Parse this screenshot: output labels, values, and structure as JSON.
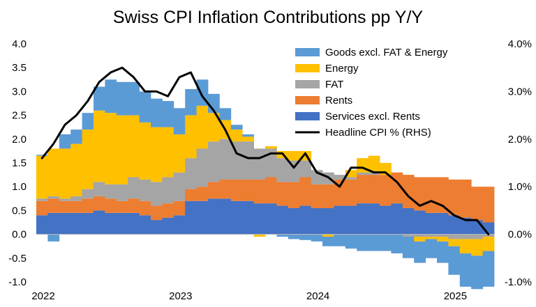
{
  "chart_data": {
    "type": "stacked-bar-with-line",
    "title": "Swiss CPI Inflation Contributions pp Y/Y",
    "xlabel": "",
    "ylabel_left": "",
    "ylabel_right": "",
    "ylim_left": [
      -1.0,
      4.0
    ],
    "ylim_right": [
      -1.0,
      4.0
    ],
    "yticks_left": [
      "4.0",
      "3.5",
      "3.0",
      "2.5",
      "2.0",
      "1.5",
      "1.0",
      "0.5",
      "0.0",
      "-0.5",
      "-1.0"
    ],
    "yticks_right": [
      "4.0%",
      "3.0%",
      "2.0%",
      "1.0%",
      "0.0%",
      "-1.0%"
    ],
    "x_labels": [
      "2022",
      "2023",
      "2024",
      "2025"
    ],
    "x_label_index": [
      0,
      12,
      24,
      36
    ],
    "legend_position": "top-right",
    "categories": [
      "Jan-22",
      "Feb-22",
      "Mar-22",
      "Apr-22",
      "May-22",
      "Jun-22",
      "Jul-22",
      "Aug-22",
      "Sep-22",
      "Oct-22",
      "Nov-22",
      "Dec-22",
      "Jan-23",
      "Feb-23",
      "Mar-23",
      "Apr-23",
      "May-23",
      "Jun-23",
      "Jul-23",
      "Aug-23",
      "Sep-23",
      "Oct-23",
      "Nov-23",
      "Dec-23",
      "Jan-24",
      "Feb-24",
      "Mar-24",
      "Apr-24",
      "May-24",
      "Jun-24",
      "Jul-24",
      "Aug-24",
      "Sep-24",
      "Oct-24",
      "Nov-24",
      "Dec-24",
      "Jan-25",
      "Feb-25",
      "Mar-25",
      "Apr-25"
    ],
    "series": [
      {
        "name": "Goods excl. FAT & Energy",
        "color": "#5b9bd5",
        "values": [
          0.02,
          -0.15,
          0.3,
          0.3,
          0.35,
          0.5,
          0.7,
          0.7,
          0.7,
          0.65,
          0.6,
          0.55,
          0.55,
          0.55,
          0.55,
          0.4,
          0.25,
          0.1,
          0.05,
          0.0,
          0.0,
          -0.05,
          -0.1,
          -0.12,
          -0.15,
          -0.2,
          -0.25,
          -0.3,
          -0.35,
          -0.35,
          -0.35,
          -0.4,
          -0.45,
          -0.45,
          -0.4,
          -0.45,
          -0.6,
          -0.7,
          -0.7,
          -0.75
        ]
      },
      {
        "name": "Energy",
        "color": "#ffc000",
        "values": [
          0.9,
          1.0,
          1.05,
          1.1,
          1.25,
          1.5,
          1.5,
          1.45,
          1.3,
          1.2,
          1.15,
          1.05,
          0.8,
          0.9,
          0.9,
          0.6,
          0.4,
          0.25,
          0.1,
          -0.05,
          0.05,
          0.15,
          0.2,
          0.2,
          0.0,
          -0.05,
          0.0,
          0.15,
          0.3,
          0.35,
          0.25,
          0.0,
          0.0,
          -0.1,
          -0.05,
          -0.1,
          -0.15,
          -0.3,
          -0.35,
          -0.3
        ]
      },
      {
        "name": "FAT",
        "color": "#a5a5a5",
        "values": [
          0.05,
          0.05,
          0.05,
          0.1,
          0.2,
          0.3,
          0.3,
          0.35,
          0.45,
          0.45,
          0.5,
          0.55,
          0.6,
          0.65,
          0.8,
          0.85,
          0.85,
          0.8,
          0.8,
          0.65,
          0.6,
          0.5,
          0.45,
          0.35,
          0.3,
          0.25,
          0.1,
          0.05,
          0.05,
          0.05,
          0.0,
          0.0,
          -0.05,
          -0.05,
          -0.05,
          -0.05,
          -0.1,
          -0.1,
          -0.1,
          -0.05
        ]
      },
      {
        "name": "Rents",
        "color": "#ed7d31",
        "values": [
          0.3,
          0.3,
          0.25,
          0.25,
          0.3,
          0.3,
          0.3,
          0.25,
          0.3,
          0.3,
          0.3,
          0.3,
          0.3,
          0.25,
          0.3,
          0.35,
          0.4,
          0.45,
          0.45,
          0.5,
          0.55,
          0.5,
          0.55,
          0.6,
          0.5,
          0.5,
          0.55,
          0.55,
          0.6,
          0.6,
          0.65,
          0.65,
          0.7,
          0.7,
          0.75,
          0.75,
          0.75,
          0.8,
          0.7,
          0.75
        ]
      },
      {
        "name": "Services excl. Rents",
        "color": "#4472c4",
        "values": [
          0.4,
          0.45,
          0.45,
          0.45,
          0.45,
          0.5,
          0.45,
          0.45,
          0.45,
          0.4,
          0.3,
          0.35,
          0.4,
          0.7,
          0.7,
          0.75,
          0.75,
          0.7,
          0.7,
          0.65,
          0.65,
          0.6,
          0.55,
          0.6,
          0.55,
          0.55,
          0.6,
          0.6,
          0.65,
          0.65,
          0.6,
          0.65,
          0.55,
          0.5,
          0.45,
          0.45,
          0.4,
          0.35,
          0.3,
          0.25
        ]
      },
      {
        "name": "Headline CPI % (RHS)",
        "color": "#000000",
        "type": "line",
        "values": [
          1.6,
          1.9,
          2.3,
          2.5,
          2.8,
          3.2,
          3.4,
          3.5,
          3.3,
          3.0,
          3.0,
          2.9,
          3.3,
          3.4,
          2.9,
          2.6,
          2.2,
          1.7,
          1.6,
          1.6,
          1.7,
          1.7,
          1.4,
          1.7,
          1.3,
          1.2,
          1.0,
          1.4,
          1.4,
          1.3,
          1.3,
          1.1,
          0.8,
          0.6,
          0.7,
          0.6,
          0.4,
          0.3,
          0.3,
          0.0
        ]
      }
    ]
  }
}
